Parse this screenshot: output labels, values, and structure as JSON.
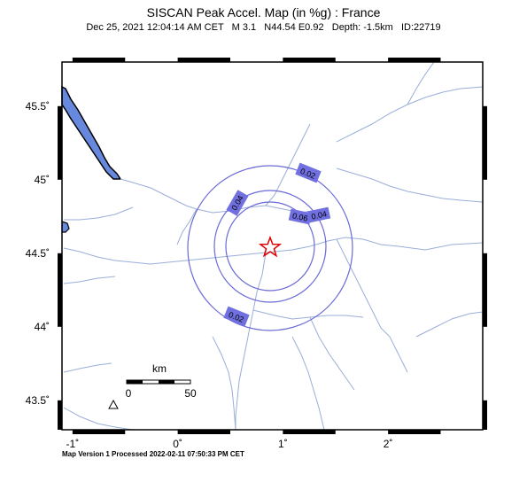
{
  "header": {
    "title": "SISCAN Peak Accel. Map (in %g) : France",
    "subtitle": "Dec 25, 2021 12:04:14 AM CET   M 3.1   N44.54 E0.92   Depth: -1.5km   ID:22719"
  },
  "footer": {
    "text": "Map Version 1 Processed 2022-02-11 07:50:33 PM CET"
  },
  "map": {
    "lon_range": [
      -1.1,
      2.9
    ],
    "lat_range": [
      43.3,
      45.8
    ],
    "lon_ticks": [
      {
        "value": -1,
        "label": "-1˚"
      },
      {
        "value": 0,
        "label": "0˚"
      },
      {
        "value": 1,
        "label": "1˚"
      },
      {
        "value": 2,
        "label": "2˚"
      }
    ],
    "lat_ticks": [
      {
        "value": 45.5,
        "label": "45.5˚"
      },
      {
        "value": 45,
        "label": "45˚"
      },
      {
        "value": 44.5,
        "label": "44.5˚"
      },
      {
        "value": 44,
        "label": "44˚"
      },
      {
        "value": 43.5,
        "label": "43.5˚"
      }
    ],
    "epicenter": {
      "lon": 0.92,
      "lat": 44.54
    },
    "contours": [
      {
        "label": "0.02",
        "level": 0.02
      },
      {
        "label": "0.04",
        "level": 0.04
      },
      {
        "label": "0.06",
        "level": 0.06
      }
    ],
    "scale_bar": {
      "unit": "km",
      "start_label": "0",
      "end_label": "50"
    },
    "colors": {
      "water": "#6688dd",
      "river": "#9aaed8",
      "contour": "#6a6ad8",
      "label_bg": "#7070e0",
      "epicenter": "#dd0000"
    }
  }
}
